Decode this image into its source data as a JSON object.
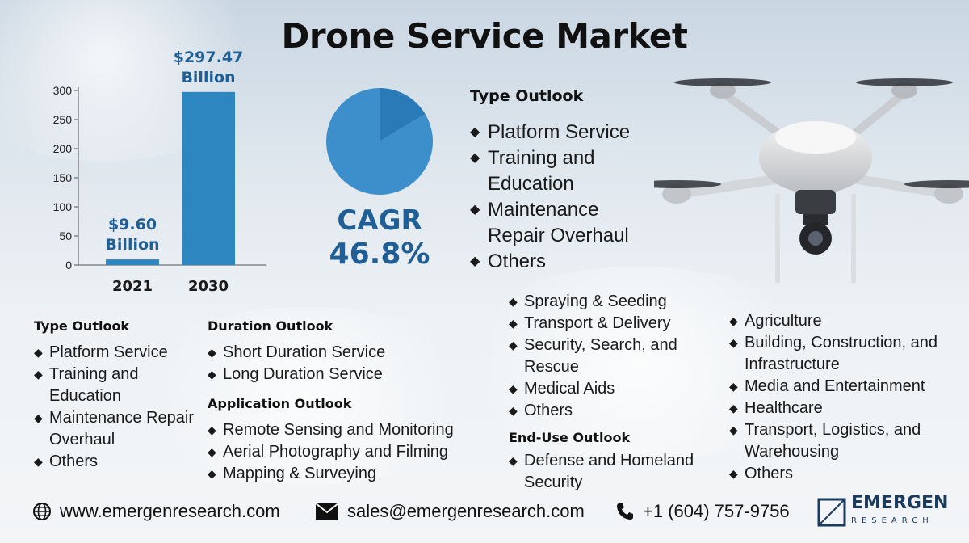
{
  "title": "Drone Service Market",
  "chart_data": {
    "type": "bar",
    "categories": [
      "2021",
      "2030"
    ],
    "values": [
      9.6,
      297.47
    ],
    "data_labels": [
      [
        "$9.60",
        "Billion"
      ],
      [
        "$297.47",
        "Billion"
      ]
    ],
    "ylim": [
      0,
      300
    ],
    "yticks": [
      0,
      50,
      100,
      150,
      200,
      250,
      300
    ],
    "colors": {
      "bar": "#2e86c1",
      "label": "#1f5f95"
    }
  },
  "pie": {
    "value_label": "CAGR",
    "value": "46.8%",
    "colors": [
      "#3d8fcc",
      "#2a7ab8"
    ]
  },
  "right_type_outlook": {
    "header": "Type Outlook",
    "items": [
      "Platform Service",
      "Training and Education",
      "Maintenance Repair Overhaul",
      "Others"
    ]
  },
  "type_outlook": {
    "header": "Type Outlook",
    "items": [
      "Platform Service",
      "Training and Education",
      "Maintenance Repair Overhaul",
      "Others"
    ]
  },
  "duration_outlook": {
    "header": "Duration Outlook",
    "items": [
      "Short Duration Service",
      "Long Duration Service"
    ]
  },
  "application_outlook": {
    "header": "Application Outlook",
    "items": [
      "Remote Sensing and Monitoring",
      "Aerial Photography and Filming",
      "Mapping & Surveying"
    ]
  },
  "application_outlook_cont": {
    "items": [
      "Spraying & Seeding",
      "Transport & Delivery",
      "Security, Search, and Rescue",
      "Medical Aids",
      "Others"
    ]
  },
  "end_use_outlook": {
    "header": "End-Use Outlook",
    "items": [
      "Defense and Homeland Security"
    ]
  },
  "end_use_outlook_cont": {
    "items": [
      "Agriculture",
      "Building, Construction, and Infrastructure",
      "Media and Entertainment",
      "Healthcare",
      "Transport, Logistics, and Warehousing",
      "Others"
    ]
  },
  "footer": {
    "website": "www.emergenresearch.com",
    "email": "sales@emergenresearch.com",
    "phone": "+1 (604) 757-9756"
  },
  "logo": {
    "name": "EMERGEN",
    "sub": "RESEARCH"
  }
}
